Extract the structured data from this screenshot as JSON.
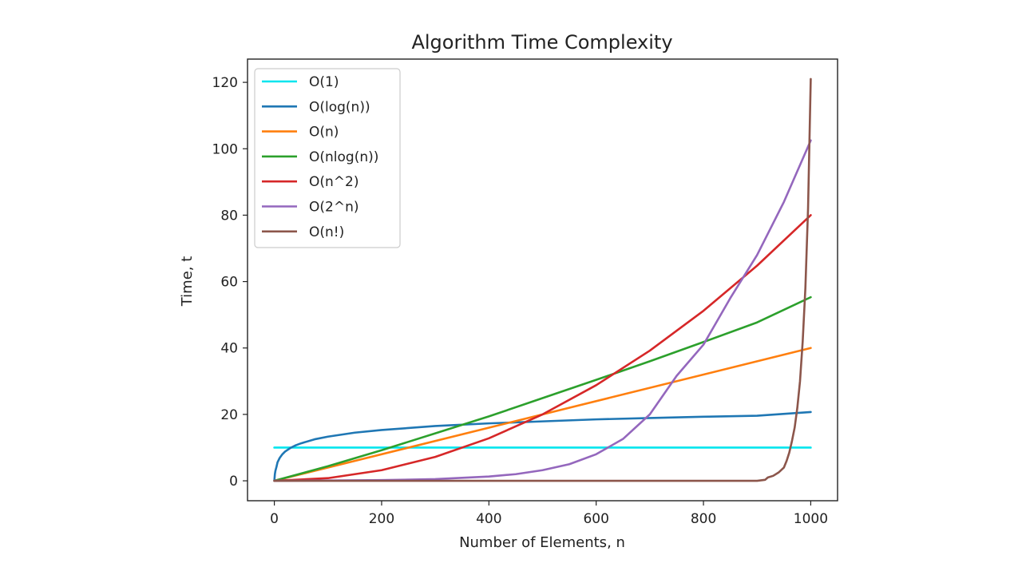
{
  "chart_data": {
    "type": "line",
    "title": "Algorithm Time Complexity",
    "xlabel": "Number of Elements, n",
    "ylabel": "Time, t",
    "xlim": [
      -50,
      1050
    ],
    "ylim": [
      -6,
      127
    ],
    "xticks": [
      0,
      200,
      400,
      600,
      800,
      1000
    ],
    "yticks": [
      0,
      20,
      40,
      60,
      80,
      100,
      120
    ],
    "grid": false,
    "legend_position": "top-left",
    "series": [
      {
        "name": "O(1)",
        "color": "#00e5ee",
        "x": [
          0,
          1000
        ],
        "y": [
          10,
          10
        ]
      },
      {
        "name": "O(log(n))",
        "color": "#1f77b4",
        "x": [
          0,
          1,
          2,
          4,
          6,
          10,
          15,
          20,
          30,
          40,
          50,
          75,
          100,
          150,
          200,
          300,
          400,
          500,
          600,
          700,
          800,
          900,
          1000
        ],
        "y": [
          0,
          2.0,
          3.0,
          4.2,
          5.6,
          6.9,
          8.0,
          8.8,
          9.9,
          10.7,
          11.3,
          12.5,
          13.3,
          14.5,
          15.3,
          16.5,
          17.3,
          17.9,
          18.5,
          18.9,
          19.3,
          19.6,
          20.7
        ]
      },
      {
        "name": "O(n)",
        "color": "#ff7f0e",
        "x": [
          0,
          1000
        ],
        "y": [
          0,
          40
        ]
      },
      {
        "name": "O(nlog(n))",
        "color": "#2ca02c",
        "x": [
          0,
          100,
          200,
          300,
          400,
          500,
          600,
          700,
          800,
          900,
          1000
        ],
        "y": [
          0,
          4.4,
          9.2,
          14.3,
          19.4,
          24.9,
          30.4,
          36.0,
          41.8,
          47.7,
          55.3
        ]
      },
      {
        "name": "O(n^2)",
        "color": "#d62728",
        "x": [
          0,
          100,
          200,
          300,
          400,
          500,
          600,
          700,
          800,
          900,
          1000
        ],
        "y": [
          0,
          0.8,
          3.2,
          7.2,
          12.8,
          20.0,
          28.8,
          39.2,
          51.2,
          64.8,
          80.0
        ]
      },
      {
        "name": "O(2^n)",
        "color": "#9467bd",
        "x": [
          0,
          100,
          200,
          300,
          400,
          450,
          500,
          550,
          600,
          650,
          700,
          750,
          800,
          850,
          900,
          950,
          1000
        ],
        "y": [
          0,
          0.1,
          0.2,
          0.5,
          1.3,
          2.0,
          3.2,
          5.0,
          8.0,
          12.6,
          20.0,
          31.6,
          41.0,
          55.0,
          68.0,
          84.0,
          102.5
        ]
      },
      {
        "name": "O(n!)",
        "color": "#8c564b",
        "x": [
          0,
          900,
          915,
          920,
          930,
          940,
          950,
          955,
          960,
          965,
          970,
          975,
          980,
          985,
          990,
          995,
          1000
        ],
        "y": [
          0,
          0,
          0.3,
          1.0,
          1.5,
          2.5,
          4.0,
          6.0,
          8.5,
          12.0,
          16.0,
          22.0,
          30.0,
          42.0,
          58.0,
          82.0,
          121.0
        ]
      }
    ]
  }
}
